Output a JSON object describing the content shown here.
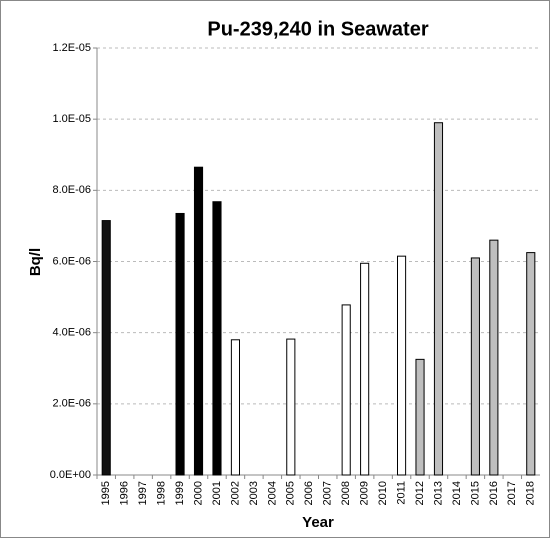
{
  "chart_data": {
    "type": "bar",
    "title": "Pu-239,240 in Seawater",
    "x_label": "Year",
    "y_label": "Bq/l",
    "categories": [
      "1995",
      "1996",
      "1997",
      "1998",
      "1999",
      "2000",
      "2001",
      "2002",
      "2003",
      "2004",
      "2005",
      "2006",
      "2007",
      "2008",
      "2009",
      "2010",
      "2011",
      "2012",
      "2013",
      "2014",
      "2015",
      "2016",
      "2017",
      "2018"
    ],
    "values": [
      7.15e-06,
      null,
      null,
      null,
      7.35e-06,
      8.65e-06,
      7.68e-06,
      3.8e-06,
      null,
      null,
      3.82e-06,
      null,
      null,
      4.78e-06,
      5.95e-06,
      null,
      6.15e-06,
      3.25e-06,
      9.9e-06,
      null,
      6.1e-06,
      6.6e-06,
      null,
      6.25e-06
    ],
    "colors": [
      "#111111",
      null,
      null,
      null,
      "#000000",
      "#000000",
      "#000000",
      "#ffffff",
      null,
      null,
      "#ffffff",
      null,
      null,
      "#ffffff",
      "#ffffff",
      null,
      "#ffffff",
      "#bfbfbf",
      "#bfbfbf",
      null,
      "#bfbfbf",
      "#bfbfbf",
      null,
      "#bfbfbf"
    ],
    "ylim": [
      0,
      1.2e-05
    ],
    "yticks": [
      {
        "value": 0,
        "label": "0.0E+00"
      },
      {
        "value": 2e-06,
        "label": "2.0E-06"
      },
      {
        "value": 4e-06,
        "label": "4.0E-06"
      },
      {
        "value": 6e-06,
        "label": "6.0E-06"
      },
      {
        "value": 8e-06,
        "label": "8.0E-06"
      },
      {
        "value": 1e-05,
        "label": "1.0E-05"
      },
      {
        "value": 1.2e-05,
        "label": "1.2E-05"
      }
    ],
    "grid": true
  }
}
